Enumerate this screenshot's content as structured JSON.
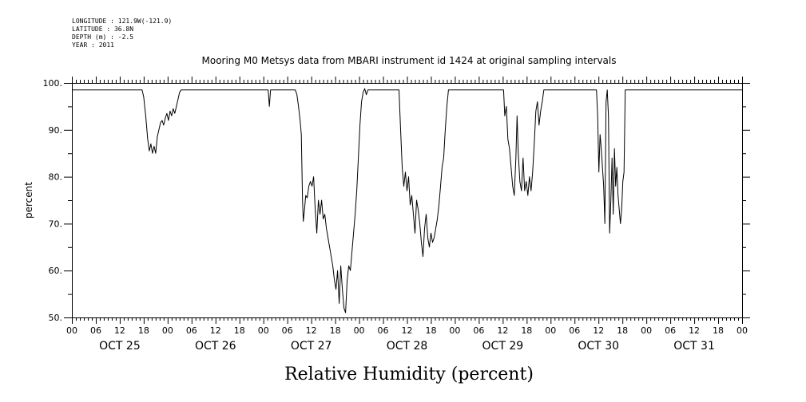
{
  "header_lines": [
    "LONGITUDE : 121.9W(-121.9)",
    "LATITUDE : 36.8N",
    "DEPTH (m) : -2.5",
    "YEAR : 2011"
  ],
  "chart_data": {
    "type": "line",
    "title": "Mooring M0 Metsys data from MBARI instrument id 1424 at original sampling intervals",
    "xlabel": "Relative Humidity (percent)",
    "ylabel": "percent",
    "ylim": [
      50,
      100
    ],
    "yticks": [
      "50.",
      "60.",
      "70.",
      "80.",
      "90.",
      "100."
    ],
    "xlim_hours": [
      0,
      168
    ],
    "xtick_labels": [
      "00",
      "06",
      "12",
      "18",
      "00",
      "06",
      "12",
      "18",
      "00",
      "06",
      "12",
      "18",
      "00",
      "06",
      "12",
      "18",
      "00",
      "06",
      "12",
      "18",
      "00",
      "06",
      "12",
      "18",
      "00",
      "06",
      "12",
      "18",
      "00"
    ],
    "day_labels": [
      "OCT 25",
      "OCT 26",
      "OCT 27",
      "OCT 28",
      "OCT 29",
      "OCT 30",
      "OCT 31"
    ],
    "grid": false,
    "series": [
      {
        "color": "#000000",
        "points": [
          [
            0,
            98.5
          ],
          [
            17.6,
            98.5
          ],
          [
            18.0,
            97.0
          ],
          [
            18.5,
            93.0
          ],
          [
            19.0,
            88.0
          ],
          [
            19.4,
            85.5
          ],
          [
            19.8,
            87.0
          ],
          [
            20.2,
            85.0
          ],
          [
            20.6,
            86.5
          ],
          [
            21.0,
            85.0
          ],
          [
            21.4,
            88.5
          ],
          [
            21.8,
            90.0
          ],
          [
            22.2,
            91.5
          ],
          [
            22.6,
            92.0
          ],
          [
            23.0,
            91.0
          ],
          [
            23.4,
            92.5
          ],
          [
            23.8,
            93.5
          ],
          [
            24.2,
            92.0
          ],
          [
            24.6,
            94.0
          ],
          [
            25.0,
            93.0
          ],
          [
            25.4,
            94.5
          ],
          [
            25.8,
            93.5
          ],
          [
            26.2,
            95.0
          ],
          [
            26.6,
            96.5
          ],
          [
            27.0,
            98.0
          ],
          [
            27.4,
            98.5
          ],
          [
            49.2,
            98.5
          ],
          [
            49.5,
            95.0
          ],
          [
            49.8,
            98.5
          ],
          [
            56.0,
            98.5
          ],
          [
            56.4,
            97.5
          ],
          [
            56.8,
            95.0
          ],
          [
            57.2,
            92.0
          ],
          [
            57.5,
            89.0
          ],
          [
            57.8,
            75.0
          ],
          [
            58.0,
            70.5
          ],
          [
            58.3,
            73.0
          ],
          [
            58.6,
            76.0
          ],
          [
            59.0,
            75.5
          ],
          [
            59.4,
            78.0
          ],
          [
            59.8,
            79.0
          ],
          [
            60.2,
            78.0
          ],
          [
            60.6,
            80.0
          ],
          [
            61.0,
            73.0
          ],
          [
            61.4,
            68.0
          ],
          [
            61.8,
            75.0
          ],
          [
            62.2,
            72.0
          ],
          [
            62.6,
            75.0
          ],
          [
            63.0,
            71.0
          ],
          [
            63.4,
            72.0
          ],
          [
            63.8,
            69.0
          ],
          [
            64.2,
            67.0
          ],
          [
            64.6,
            65.0
          ],
          [
            65.0,
            63.0
          ],
          [
            65.4,
            61.0
          ],
          [
            65.8,
            58.0
          ],
          [
            66.2,
            56.0
          ],
          [
            66.6,
            60.0
          ],
          [
            67.0,
            53.0
          ],
          [
            67.4,
            61.0
          ],
          [
            67.8,
            56.0
          ],
          [
            68.2,
            52.0
          ],
          [
            68.6,
            51.0
          ],
          [
            69.0,
            58.0
          ],
          [
            69.4,
            61.0
          ],
          [
            69.8,
            60.0
          ],
          [
            70.2,
            64.0
          ],
          [
            70.6,
            68.0
          ],
          [
            71.0,
            72.0
          ],
          [
            71.4,
            77.0
          ],
          [
            71.8,
            84.0
          ],
          [
            72.2,
            91.0
          ],
          [
            72.6,
            96.0
          ],
          [
            73.0,
            98.0
          ],
          [
            73.4,
            98.8
          ],
          [
            73.8,
            97.5
          ],
          [
            74.2,
            98.5
          ],
          [
            82.0,
            98.5
          ],
          [
            82.4,
            90.0
          ],
          [
            82.8,
            82.0
          ],
          [
            83.2,
            78.0
          ],
          [
            83.6,
            81.0
          ],
          [
            84.0,
            77.0
          ],
          [
            84.4,
            80.0
          ],
          [
            84.8,
            74.0
          ],
          [
            85.2,
            76.0
          ],
          [
            85.6,
            72.0
          ],
          [
            86.0,
            68.0
          ],
          [
            86.4,
            75.0
          ],
          [
            86.8,
            73.0
          ],
          [
            87.2,
            70.0
          ],
          [
            87.6,
            66.0
          ],
          [
            88.0,
            63.0
          ],
          [
            88.4,
            69.0
          ],
          [
            88.8,
            72.0
          ],
          [
            89.2,
            67.0
          ],
          [
            89.6,
            65.0
          ],
          [
            90.0,
            68.0
          ],
          [
            90.4,
            66.0
          ],
          [
            90.8,
            67.0
          ],
          [
            91.2,
            69.0
          ],
          [
            91.6,
            71.0
          ],
          [
            92.0,
            74.0
          ],
          [
            92.4,
            78.0
          ],
          [
            92.8,
            82.0
          ],
          [
            93.2,
            84.0
          ],
          [
            93.6,
            90.0
          ],
          [
            94.0,
            95.0
          ],
          [
            94.4,
            98.5
          ],
          [
            108.2,
            98.5
          ],
          [
            108.5,
            93.0
          ],
          [
            108.9,
            95.0
          ],
          [
            109.3,
            88.0
          ],
          [
            109.7,
            86.0
          ],
          [
            110.1,
            82.0
          ],
          [
            110.5,
            78.0
          ],
          [
            110.9,
            76.0
          ],
          [
            111.3,
            84.0
          ],
          [
            111.6,
            93.0
          ],
          [
            111.9,
            85.0
          ],
          [
            112.3,
            79.0
          ],
          [
            112.7,
            77.0
          ],
          [
            113.1,
            84.0
          ],
          [
            113.5,
            77.0
          ],
          [
            113.9,
            79.0
          ],
          [
            114.3,
            76.0
          ],
          [
            114.7,
            80.0
          ],
          [
            115.1,
            77.0
          ],
          [
            115.5,
            81.0
          ],
          [
            115.9,
            87.0
          ],
          [
            116.3,
            94.0
          ],
          [
            116.7,
            96.0
          ],
          [
            117.1,
            91.0
          ],
          [
            117.5,
            94.0
          ],
          [
            117.9,
            96.0
          ],
          [
            118.3,
            98.5
          ],
          [
            131.5,
            98.5
          ],
          [
            131.8,
            93.0
          ],
          [
            132.1,
            81.0
          ],
          [
            132.4,
            89.0
          ],
          [
            132.7,
            86.0
          ],
          [
            133.0,
            82.0
          ],
          [
            133.3,
            78.0
          ],
          [
            133.6,
            70.0
          ],
          [
            133.9,
            96.0
          ],
          [
            134.2,
            98.5
          ],
          [
            134.5,
            93.0
          ],
          [
            134.8,
            68.0
          ],
          [
            135.1,
            75.0
          ],
          [
            135.4,
            84.0
          ],
          [
            135.7,
            72.0
          ],
          [
            136.0,
            86.0
          ],
          [
            136.3,
            78.0
          ],
          [
            136.6,
            82.0
          ],
          [
            136.9,
            76.0
          ],
          [
            137.2,
            73.0
          ],
          [
            137.5,
            70.0
          ],
          [
            137.8,
            73.0
          ],
          [
            138.1,
            79.0
          ],
          [
            138.4,
            81.0
          ],
          [
            138.7,
            98.5
          ],
          [
            168,
            98.5
          ]
        ]
      }
    ]
  }
}
